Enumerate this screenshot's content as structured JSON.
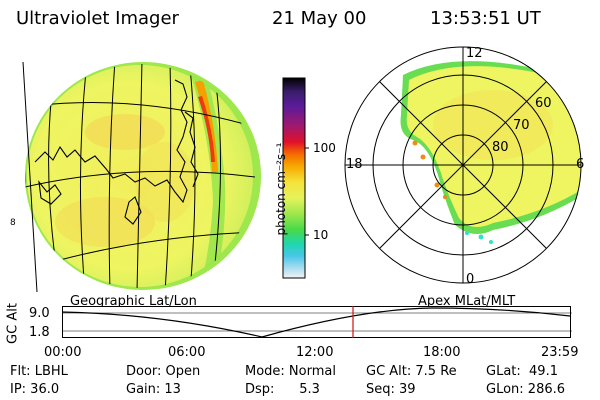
{
  "header": {
    "instrument": "Ultraviolet Imager",
    "date": "21 May 00",
    "time": "13:53:51 UT"
  },
  "colorbar": {
    "unit_label": "photon cm⁻²s⁻¹",
    "ticks": [
      "100",
      "10"
    ],
    "colors": [
      "#000000",
      "#3b1e6d",
      "#5b1b9a",
      "#a0196e",
      "#e0102a",
      "#f56a00",
      "#f8a700",
      "#f6e23a",
      "#e5f35c",
      "#9ee74c",
      "#47d94a",
      "#1fd7b0",
      "#49c6e8",
      "#a9ddf0",
      "#f2f2f2"
    ]
  },
  "left_map": {
    "label": "Geographic Lat/Lon",
    "side_ticks": [
      "8"
    ],
    "colors": {
      "fill": "#eef561",
      "fill_warm": "#f4d553",
      "edge_green": "#7de05a",
      "aurora_red": "#ec3a12"
    }
  },
  "polar_plot": {
    "label": "Apex MLat/MLT",
    "mlt_labels": [
      "12",
      "18",
      "6",
      "0"
    ],
    "mlat_labels": [
      "60",
      "70",
      "80"
    ],
    "colors": {
      "fill": "#eef561",
      "edge_green": "#69dd52",
      "cyan": "#2fe2c8",
      "orange": "#f08a10"
    }
  },
  "altitude_plot": {
    "ylabel": "GC Alt",
    "yticks": [
      "9.0",
      "1.8"
    ],
    "xticks": [
      "00:00",
      "06:00",
      "12:00",
      "18:00",
      "23:59"
    ],
    "marker_color": "#d01010"
  },
  "footer": {
    "row1": [
      "Flt: LBHL",
      "Door: Open",
      "Mode: Normal",
      "GC Alt: 7.5 Re",
      "GLat:  49.1"
    ],
    "row2": [
      "IP: 36.0",
      "Gain: 13",
      "Dsp:      5.3",
      "Seq: 39",
      "GLon: 286.6"
    ]
  }
}
